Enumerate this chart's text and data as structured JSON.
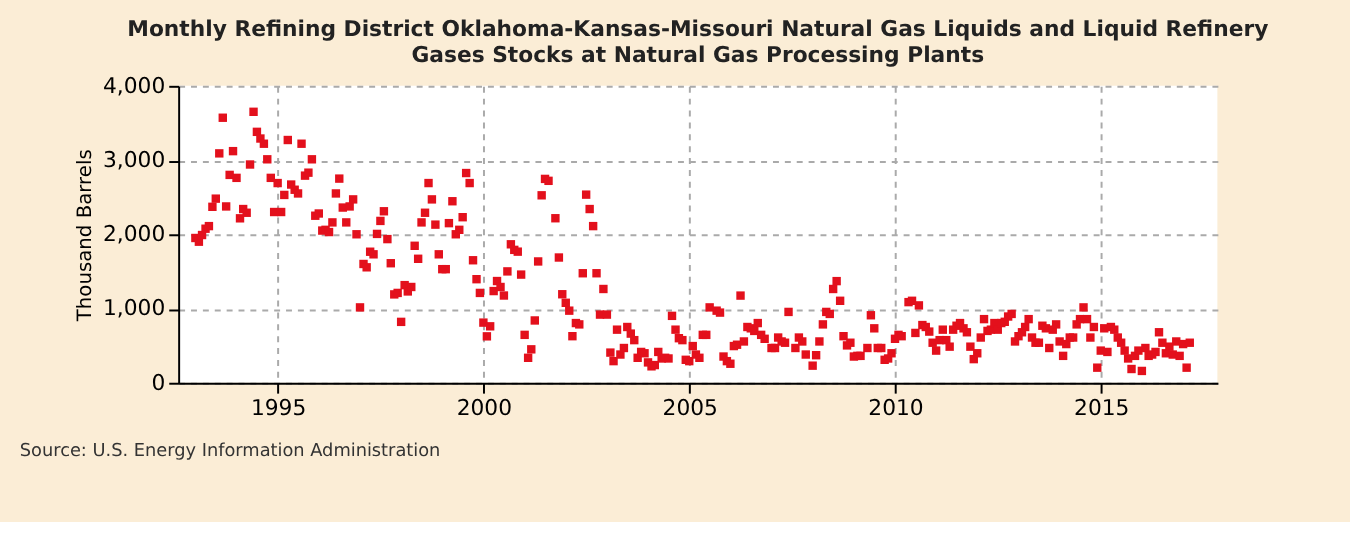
{
  "chart_data": {
    "type": "scatter",
    "title": "Monthly Refining District Oklahoma-Kansas-Missouri Natural Gas Liquids and Liquid Refinery Gases Stocks at Natural Gas Processing Plants",
    "ylabel": "Thousand Barrels",
    "annotations": [
      "Source: U.S. Energy Information Administration"
    ],
    "x": [
      "1993-01",
      "1993-02",
      "1993-03",
      "1993-04",
      "1993-05",
      "1993-06",
      "1993-07",
      "1993-08",
      "1993-09",
      "1993-10",
      "1993-11",
      "1993-12",
      "1994-01",
      "1994-02",
      "1994-03",
      "1994-04",
      "1994-05",
      "1994-06",
      "1994-07",
      "1994-08",
      "1994-09",
      "1994-10",
      "1994-11",
      "1994-12",
      "1995-01",
      "1995-02",
      "1995-03",
      "1995-04",
      "1995-05",
      "1995-06",
      "1995-07",
      "1995-08",
      "1995-09",
      "1995-10",
      "1995-11",
      "1995-12",
      "1996-01",
      "1996-02",
      "1996-03",
      "1996-04",
      "1996-05",
      "1996-06",
      "1996-07",
      "1996-08",
      "1996-09",
      "1996-10",
      "1996-11",
      "1996-12",
      "1997-01",
      "1997-02",
      "1997-03",
      "1997-04",
      "1997-05",
      "1997-06",
      "1997-07",
      "1997-08",
      "1997-09",
      "1997-10",
      "1997-11",
      "1997-12",
      "1998-01",
      "1998-02",
      "1998-03",
      "1998-04",
      "1998-05",
      "1998-06",
      "1998-07",
      "1998-08",
      "1998-09",
      "1998-10",
      "1998-11",
      "1998-12",
      "1999-01",
      "1999-02",
      "1999-03",
      "1999-04",
      "1999-05",
      "1999-06",
      "1999-07",
      "1999-08",
      "1999-09",
      "1999-10",
      "1999-11",
      "1999-12",
      "2000-01",
      "2000-02",
      "2000-03",
      "2000-04",
      "2000-05",
      "2000-06",
      "2000-07",
      "2000-08",
      "2000-09",
      "2000-10",
      "2000-11",
      "2000-12",
      "2001-01",
      "2001-02",
      "2001-03",
      "2001-04",
      "2001-05",
      "2001-06",
      "2001-07",
      "2001-08",
      "2001-10",
      "2001-11",
      "2001-12",
      "2002-01",
      "2002-02",
      "2002-03",
      "2002-04",
      "2002-05",
      "2002-06",
      "2002-07",
      "2002-08",
      "2002-09",
      "2002-10",
      "2002-11",
      "2002-12",
      "2003-01",
      "2003-02",
      "2003-03",
      "2003-04",
      "2003-05",
      "2003-06",
      "2003-07",
      "2003-08",
      "2003-09",
      "2003-10",
      "2003-11",
      "2003-12",
      "2004-01",
      "2004-02",
      "2004-03",
      "2004-04",
      "2004-05",
      "2004-06",
      "2004-07",
      "2004-08",
      "2004-09",
      "2004-10",
      "2004-11",
      "2004-12",
      "2005-01",
      "2005-02",
      "2005-03",
      "2005-04",
      "2005-05",
      "2005-06",
      "2005-07",
      "2005-09",
      "2005-10",
      "2005-11",
      "2005-12",
      "2006-01",
      "2006-02",
      "2006-03",
      "2006-04",
      "2006-05",
      "2006-06",
      "2006-07",
      "2006-08",
      "2006-09",
      "2006-10",
      "2006-11",
      "2007-01",
      "2007-02",
      "2007-03",
      "2007-04",
      "2007-05",
      "2007-06",
      "2007-08",
      "2007-09",
      "2007-10",
      "2007-11",
      "2008-01",
      "2008-02",
      "2008-03",
      "2008-04",
      "2008-05",
      "2008-06",
      "2008-07",
      "2008-08",
      "2008-09",
      "2008-10",
      "2008-11",
      "2008-12",
      "2009-01",
      "2009-02",
      "2009-03",
      "2009-05",
      "2009-06",
      "2009-07",
      "2009-08",
      "2009-09",
      "2009-10",
      "2009-11",
      "2009-12",
      "2010-01",
      "2010-02",
      "2010-03",
      "2010-05",
      "2010-06",
      "2010-07",
      "2010-08",
      "2010-09",
      "2010-10",
      "2010-11",
      "2010-12",
      "2011-01",
      "2011-02",
      "2011-03",
      "2011-04",
      "2011-05",
      "2011-06",
      "2011-07",
      "2011-08",
      "2011-09",
      "2011-10",
      "2011-11",
      "2011-12",
      "2012-01",
      "2012-02",
      "2012-03",
      "2012-04",
      "2012-05",
      "2012-06",
      "2012-07",
      "2012-08",
      "2012-09",
      "2012-10",
      "2012-11",
      "2012-12",
      "2013-01",
      "2013-02",
      "2013-03",
      "2013-04",
      "2013-05",
      "2013-06",
      "2013-07",
      "2013-08",
      "2013-09",
      "2013-10",
      "2013-11",
      "2013-12",
      "2014-01",
      "2014-02",
      "2014-03",
      "2014-04",
      "2014-05",
      "2014-06",
      "2014-07",
      "2014-08",
      "2014-09",
      "2014-10",
      "2014-11",
      "2014-12",
      "2015-01",
      "2015-02",
      "2015-03",
      "2015-04",
      "2015-05",
      "2015-06",
      "2015-07",
      "2015-08",
      "2015-09",
      "2015-10",
      "2015-11",
      "2015-12",
      "2016-01",
      "2016-02",
      "2016-03",
      "2016-04",
      "2016-05",
      "2016-06",
      "2016-07",
      "2016-08",
      "2016-09",
      "2016-10",
      "2016-11",
      "2016-12",
      "2017-01",
      "2017-02",
      "2017-03"
    ],
    "series": [
      {
        "color": "#e3101c",
        "values": [
          1950,
          1900,
          1990,
          2075,
          2110,
          2370,
          2480,
          3090,
          3570,
          2375,
          2800,
          3120,
          2760,
          2215,
          2340,
          2290,
          2940,
          3650,
          3380,
          3290,
          3220,
          3010,
          2760,
          2300,
          2690,
          2300,
          2530,
          3270,
          2670,
          2600,
          2550,
          3220,
          2790,
          2830,
          3010,
          2250,
          2280,
          2050,
          2060,
          2030,
          2160,
          2550,
          2750,
          2360,
          2160,
          2375,
          2470,
          2000,
          1015,
          1600,
          1555,
          1765,
          1730,
          2005,
          2180,
          2310,
          1935,
          1610,
          1190,
          1210,
          820,
          1315,
          1230,
          1290,
          1845,
          1670,
          2160,
          2290,
          2690,
          2470,
          2130,
          1730,
          1530,
          1530,
          2150,
          2445,
          2000,
          2060,
          2230,
          2825,
          2690,
          1650,
          1395,
          1210,
          810,
          625,
          760,
          1235,
          1370,
          1290,
          1175,
          1500,
          1865,
          1790,
          1766,
          1457,
          645,
          336,
          450,
          839,
          1634,
          2525,
          2746,
          2720,
          2216,
          1687,
          1192,
          1077,
          971,
          627,
          804,
          786,
          1475,
          2534,
          2340,
          2110,
          1475,
          918,
          1263,
          918,
          406,
          291,
          715,
          380,
          468,
          751,
          662,
          574,
          336,
          415,
          397,
          274,
          221,
          238,
          415,
          327,
          336,
          327,
          901,
          715,
          600,
          574,
          309,
          291,
          494,
          380,
          336,
          645,
          645,
          1015,
          971,
          945,
          353,
          291,
          256,
          494,
          512,
          1174,
          556,
          751,
          733,
          698,
          804,
          645,
          592,
          468,
          468,
          609,
          556,
          539,
          954,
          468,
          609,
          556,
          380,
          230,
          371,
          556,
          786,
          954,
          927,
          1263,
          1369,
          1104,
          627,
          503,
          539,
          353,
          362,
          362,
          468,
          909,
          733,
          468,
          468,
          309,
          327,
          397,
          592,
          645,
          627,
          1086,
          1104,
          671,
          1042,
          777,
          751,
          689,
          539,
          433,
          574,
          715,
          574,
          486,
          715,
          768,
          804,
          733,
          680,
          486,
          318,
          397,
          609,
          857,
          698,
          715,
          804,
          715,
          804,
          821,
          892,
          927,
          556,
          627,
          680,
          751,
          857,
          609,
          539,
          539,
          768,
          733,
          468,
          715,
          786,
          556,
          362,
          521,
          609,
          609,
          786,
          857,
          1015,
          857,
          609,
          751,
          203,
          433,
          733,
          415,
          751,
          715,
          609,
          539,
          433,
          327,
          185,
          362,
          433,
          159,
          468,
          362,
          380,
          415,
          680,
          539,
          397,
          486,
          380,
          556,
          362,
          521,
          203,
          539
        ]
      }
    ],
    "marker": "square",
    "xlim": [
      "1992-08",
      "2017-11"
    ],
    "xticks": [
      "1995",
      "2000",
      "2005",
      "2010",
      "2015"
    ],
    "ylim": [
      0,
      4000
    ],
    "yticks": [
      0,
      {
        "value": 1000,
        "label": "1,000"
      },
      {
        "value": 2000,
        "label": "2,000"
      },
      {
        "value": 3000,
        "label": "3,000"
      },
      {
        "value": 4000,
        "label": "4,000"
      }
    ],
    "grid": true
  }
}
